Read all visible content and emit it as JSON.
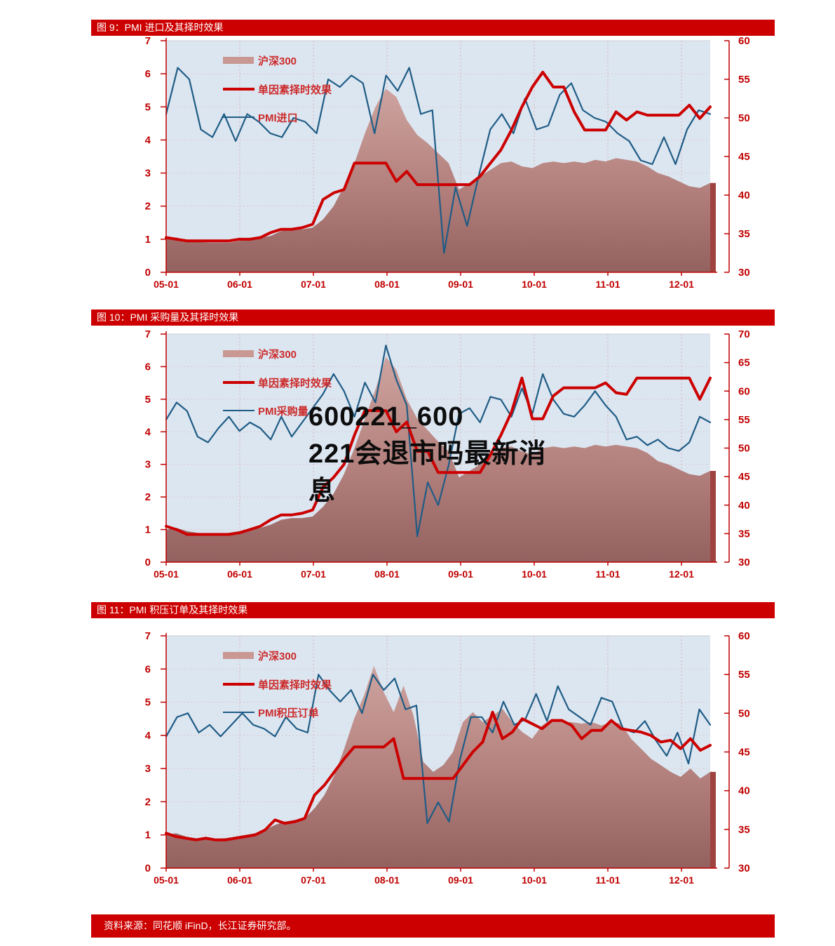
{
  "colors": {
    "accent_red": "#cc0000",
    "axis_label_red": "#c00000",
    "line_blue": "#1f5c85",
    "area_pink_top": "#cda09b",
    "area_pink_bottom": "#8f5a57",
    "edge_strip": "#a04340",
    "plot_bg": "#dce6f1"
  },
  "watermark": {
    "lines": [
      "600221_600",
      "221会退市吗最新消",
      "息"
    ]
  },
  "source_bar": {
    "text": "资料来源：同花顺 iFinD，长江证券研究部。"
  },
  "chart_data": [
    {
      "type": "line",
      "title": "图 9：PMI 进口及其择时效果",
      "x_ticks": [
        "05-01",
        "06-01",
        "07-01",
        "08-01",
        "09-01",
        "10-01",
        "11-01",
        "12-01"
      ],
      "left_axis": {
        "min": 0,
        "max": 7,
        "ticks": [
          7,
          6,
          5,
          4,
          3,
          2,
          1,
          0
        ]
      },
      "right_axis": {
        "min": 30,
        "max": 60,
        "ticks": [
          60,
          55,
          50,
          45,
          40,
          35,
          30
        ]
      },
      "grid": true,
      "legend_position": "top-left",
      "series": [
        {
          "name": "沪深300",
          "kind": "area",
          "axis": "left",
          "values": [
            1.0,
            1.05,
            0.95,
            0.92,
            0.9,
            0.9,
            0.9,
            0.95,
            1.0,
            1.05,
            1.1,
            1.25,
            1.3,
            1.3,
            1.35,
            1.6,
            2.0,
            2.6,
            3.3,
            4.2,
            5.0,
            5.55,
            5.3,
            4.6,
            4.15,
            3.9,
            3.6,
            3.3,
            2.5,
            2.7,
            2.9,
            3.1,
            3.3,
            3.35,
            3.2,
            3.15,
            3.3,
            3.35,
            3.3,
            3.35,
            3.3,
            3.4,
            3.35,
            3.45,
            3.4,
            3.35,
            3.2,
            3.0,
            2.9,
            2.75,
            2.6,
            2.55,
            2.7
          ]
        },
        {
          "name": "单因素择时效果",
          "kind": "line",
          "axis": "left",
          "values": [
            1.05,
            1.0,
            0.95,
            0.95,
            0.95,
            0.95,
            0.95,
            1.0,
            1.0,
            1.05,
            1.2,
            1.3,
            1.3,
            1.35,
            1.45,
            2.2,
            2.4,
            2.5,
            3.3,
            3.3,
            3.3,
            3.3,
            2.75,
            3.05,
            2.65,
            2.65,
            2.65,
            2.65,
            2.65,
            2.65,
            2.9,
            3.3,
            3.7,
            4.3,
            5.0,
            5.6,
            6.05,
            5.6,
            5.6,
            4.85,
            4.3,
            4.3,
            4.3,
            4.85,
            4.6,
            4.85,
            4.75,
            4.75,
            4.75,
            4.75,
            5.05,
            4.65,
            5.0
          ]
        },
        {
          "name": "PMI进口",
          "kind": "line",
          "axis": "right",
          "values": [
            50.5,
            56.5,
            55,
            48.5,
            47.5,
            50.5,
            47,
            50.5,
            49.5,
            48,
            47.5,
            50,
            49.5,
            48,
            55,
            54,
            55.5,
            54.5,
            48,
            55.5,
            53.5,
            56.5,
            50.5,
            51,
            32.5,
            41,
            36,
            42.5,
            48.5,
            50.5,
            48,
            52.5,
            48.5,
            49,
            53,
            54.5,
            51,
            50,
            49.5,
            48,
            47,
            44.5,
            44,
            47.5,
            44,
            48.5,
            51,
            50.5
          ]
        }
      ]
    },
    {
      "type": "line",
      "title": "图 10：PMI 采购量及其择时效果",
      "x_ticks": [
        "05-01",
        "06-01",
        "07-01",
        "08-01",
        "09-01",
        "10-01",
        "11-01",
        "12-01"
      ],
      "left_axis": {
        "min": 0,
        "max": 7,
        "ticks": [
          7,
          6,
          5,
          4,
          3,
          2,
          1,
          0
        ]
      },
      "right_axis": {
        "min": 30,
        "max": 70,
        "ticks": [
          70,
          65,
          60,
          55,
          50,
          45,
          40,
          35,
          30
        ]
      },
      "grid": true,
      "legend_position": "top-left",
      "series": [
        {
          "name": "沪深300",
          "kind": "area",
          "axis": "left",
          "values": [
            1.0,
            1.05,
            0.95,
            0.9,
            0.88,
            0.88,
            0.9,
            0.95,
            1.0,
            1.05,
            1.15,
            1.3,
            1.35,
            1.35,
            1.4,
            1.7,
            2.1,
            2.7,
            3.5,
            4.4,
            5.3,
            6.3,
            5.9,
            5.0,
            4.4,
            4.05,
            3.7,
            3.4,
            2.6,
            2.8,
            3.0,
            3.3,
            3.5,
            3.55,
            3.4,
            3.3,
            3.5,
            3.55,
            3.5,
            3.55,
            3.5,
            3.6,
            3.55,
            3.6,
            3.55,
            3.5,
            3.35,
            3.1,
            3.0,
            2.85,
            2.7,
            2.65,
            2.8
          ]
        },
        {
          "name": "单因素择时效果",
          "kind": "line",
          "axis": "left",
          "values": [
            1.1,
            1.0,
            0.85,
            0.85,
            0.85,
            0.85,
            0.85,
            0.9,
            1.0,
            1.1,
            1.3,
            1.45,
            1.45,
            1.5,
            1.6,
            2.3,
            2.6,
            3.0,
            3.9,
            4.65,
            4.65,
            4.65,
            4.0,
            4.3,
            3.4,
            3.4,
            2.75,
            2.75,
            2.75,
            2.75,
            2.75,
            3.3,
            3.9,
            4.6,
            5.65,
            4.4,
            4.4,
            5.1,
            5.35,
            5.35,
            5.35,
            5.35,
            5.5,
            5.2,
            5.15,
            5.65,
            5.65,
            5.65,
            5.65,
            5.65,
            5.65,
            5.0,
            5.65
          ]
        },
        {
          "name": "PMI采购量",
          "kind": "line",
          "axis": "right",
          "values": [
            55,
            58,
            56.5,
            52,
            51,
            53.5,
            55.5,
            53,
            54.5,
            53.5,
            51.5,
            55.5,
            52,
            54.5,
            57,
            59.5,
            63,
            60,
            55.5,
            61.5,
            58,
            68,
            62,
            57.5,
            34.5,
            44,
            40,
            47,
            56,
            57,
            54.5,
            59,
            58.5,
            55.5,
            60.5,
            56,
            63,
            58.5,
            56,
            55.5,
            57.5,
            60,
            57.5,
            55.5,
            51.5,
            52,
            50.5,
            51.5,
            50,
            49.5,
            51,
            55.5,
            54.5
          ]
        }
      ]
    },
    {
      "type": "line",
      "title": "图 11：PMI 积压订单及其择时效果",
      "x_ticks": [
        "05-01",
        "06-01",
        "07-01",
        "08-01",
        "09-01",
        "10-01",
        "11-01",
        "12-01"
      ],
      "left_axis": {
        "min": 0,
        "max": 7,
        "ticks": [
          7,
          6,
          5,
          4,
          3,
          2,
          1,
          0
        ]
      },
      "right_axis": {
        "min": 30,
        "max": 60,
        "ticks": [
          60,
          55,
          50,
          45,
          40,
          35,
          30
        ]
      },
      "grid": true,
      "legend_position": "top-left",
      "series": [
        {
          "name": "沪深300",
          "kind": "area",
          "axis": "left",
          "values": [
            1.0,
            1.05,
            0.95,
            0.9,
            0.88,
            0.88,
            0.9,
            0.95,
            1.0,
            1.05,
            1.15,
            1.3,
            1.4,
            1.45,
            1.5,
            1.8,
            2.2,
            2.8,
            3.6,
            4.5,
            5.2,
            6.1,
            5.3,
            4.7,
            5.5,
            4.6,
            3.2,
            2.9,
            3.1,
            3.5,
            4.4,
            4.7,
            4.4,
            4.6,
            4.8,
            4.4,
            4.1,
            3.9,
            4.3,
            4.5,
            4.4,
            4.4,
            4.35,
            4.4,
            4.3,
            4.4,
            4.35,
            3.9,
            3.6,
            3.3,
            3.1,
            2.9,
            2.75,
            3.0,
            2.7,
            2.9
          ]
        },
        {
          "name": "单因素择时效果",
          "kind": "line",
          "axis": "left",
          "values": [
            1.05,
            0.95,
            0.9,
            0.85,
            0.9,
            0.85,
            0.85,
            0.9,
            0.95,
            1.0,
            1.15,
            1.45,
            1.35,
            1.4,
            1.5,
            2.2,
            2.5,
            2.9,
            3.3,
            3.65,
            3.65,
            3.65,
            3.65,
            3.9,
            2.7,
            2.7,
            2.7,
            2.7,
            2.7,
            2.7,
            3.1,
            3.5,
            3.8,
            4.7,
            3.9,
            4.1,
            4.5,
            4.35,
            4.2,
            4.45,
            4.45,
            4.3,
            3.9,
            4.15,
            4.15,
            4.45,
            4.2,
            4.15,
            4.1,
            4.0,
            3.8,
            3.85,
            3.6,
            3.9,
            3.55,
            3.7
          ]
        },
        {
          "name": "PMI积压订单",
          "kind": "line",
          "axis": "right",
          "values": [
            47,
            49.5,
            50,
            47.5,
            48.5,
            47,
            48.5,
            50,
            48.5,
            48,
            47,
            49.5,
            48,
            47.5,
            55,
            53,
            51.5,
            53,
            50,
            55,
            53,
            54.5,
            50.5,
            51,
            35.8,
            38.5,
            36,
            44,
            49.5,
            49.5,
            47.5,
            51.5,
            48.5,
            49.2,
            52.5,
            49,
            53.5,
            50.5,
            49.5,
            48.5,
            52,
            51.5,
            48,
            47.5,
            49,
            46.5,
            44.5,
            47.5,
            43.5,
            50.5,
            48.5
          ]
        }
      ]
    }
  ]
}
